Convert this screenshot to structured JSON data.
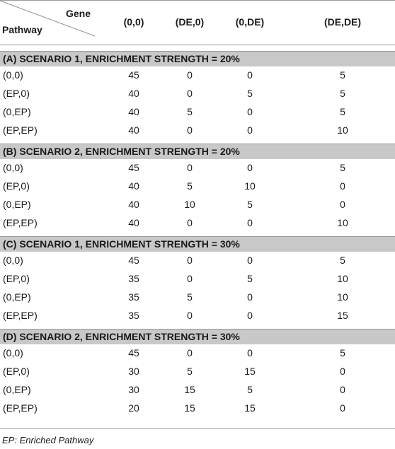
{
  "table": {
    "header": {
      "gene_label": "Gene",
      "pathway_label": "Pathway",
      "columns": [
        "(0,0)",
        "(DE,0)",
        "(0,DE)",
        "(DE,DE)"
      ]
    },
    "sections": [
      {
        "title": "(A) SCENARIO 1, ENRICHMENT STRENGTH = 20%",
        "rows": [
          {
            "label": "(0,0)",
            "values": [
              "45",
              "0",
              "0",
              "5"
            ]
          },
          {
            "label": "(EP,0)",
            "values": [
              "40",
              "0",
              "5",
              "5"
            ]
          },
          {
            "label": "(0,EP)",
            "values": [
              "40",
              "5",
              "0",
              "5"
            ]
          },
          {
            "label": "(EP,EP)",
            "values": [
              "40",
              "0",
              "0",
              "10"
            ]
          }
        ]
      },
      {
        "title": "(B) SCENARIO 2, ENRICHMENT STRENGTH = 20%",
        "rows": [
          {
            "label": "(0,0)",
            "values": [
              "45",
              "0",
              "0",
              "5"
            ]
          },
          {
            "label": "(EP,0)",
            "values": [
              "40",
              "5",
              "10",
              "0"
            ]
          },
          {
            "label": "(0,EP)",
            "values": [
              "40",
              "10",
              "5",
              "0"
            ]
          },
          {
            "label": "(EP,EP)",
            "values": [
              "40",
              "0",
              "0",
              "10"
            ]
          }
        ]
      },
      {
        "title": "(C) SCENARIO 1, ENRICHMENT STRENGTH = 30%",
        "rows": [
          {
            "label": "(0,0)",
            "values": [
              "45",
              "0",
              "0",
              "5"
            ]
          },
          {
            "label": "(EP,0)",
            "values": [
              "35",
              "0",
              "5",
              "10"
            ]
          },
          {
            "label": "(0,EP)",
            "values": [
              "35",
              "5",
              "0",
              "10"
            ]
          },
          {
            "label": "(EP,EP)",
            "values": [
              "35",
              "0",
              "0",
              "15"
            ]
          }
        ]
      },
      {
        "title": "(D) SCENARIO 2, ENRICHMENT STRENGTH = 30%",
        "rows": [
          {
            "label": "(0,0)",
            "values": [
              "45",
              "0",
              "0",
              "5"
            ]
          },
          {
            "label": "(EP,0)",
            "values": [
              "30",
              "5",
              "15",
              "0"
            ]
          },
          {
            "label": "(0,EP)",
            "values": [
              "30",
              "15",
              "5",
              "0"
            ]
          },
          {
            "label": "(EP,EP)",
            "values": [
              "20",
              "15",
              "15",
              "0"
            ]
          }
        ]
      }
    ]
  },
  "footnote": "EP: Enriched Pathway"
}
